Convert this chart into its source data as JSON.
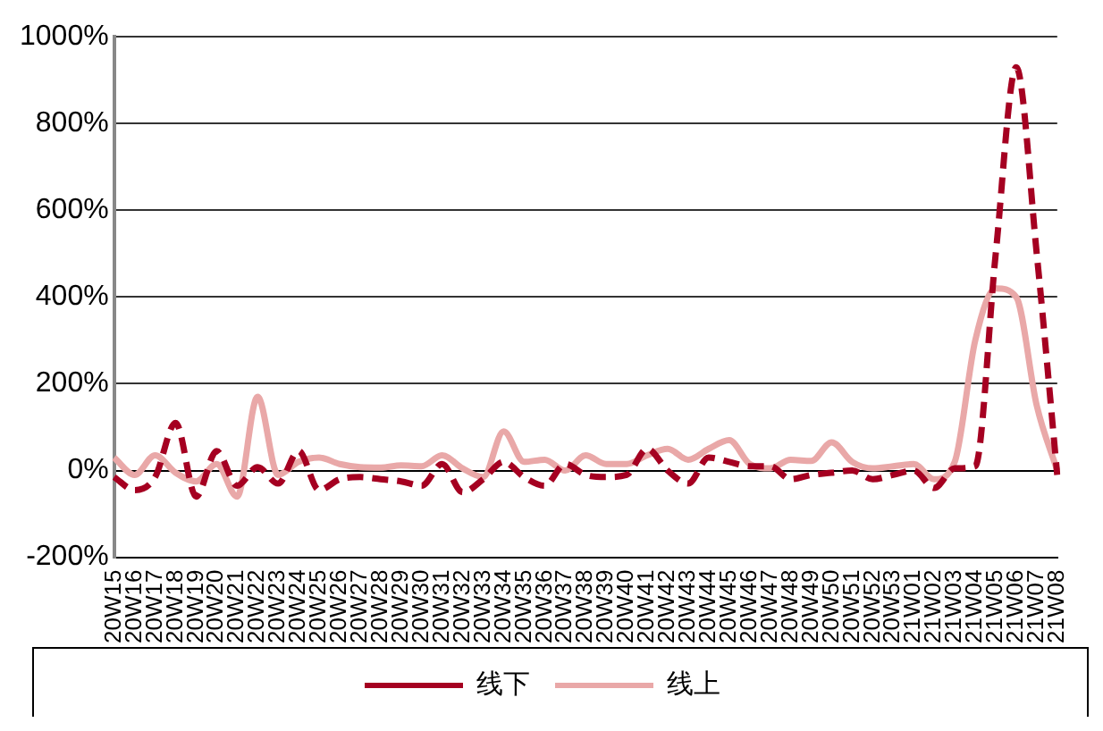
{
  "chart_data": {
    "type": "line",
    "categories": [
      "20W15",
      "20W16",
      "20W17",
      "20W18",
      "20W19",
      "20W20",
      "20W21",
      "20W22",
      "20W23",
      "20W24",
      "20W25",
      "20W26",
      "20W27",
      "20W28",
      "20W29",
      "20W30",
      "20W31",
      "20W32",
      "20W33",
      "20W34",
      "20W35",
      "20W36",
      "20W37",
      "20W38",
      "20W39",
      "20W40",
      "20W41",
      "20W42",
      "20W43",
      "20W44",
      "20W45",
      "20W46",
      "20W47",
      "20W48",
      "20W49",
      "20W50",
      "20W51",
      "20W52",
      "20W53",
      "21W01",
      "21W02",
      "21W03",
      "21W04",
      "21W05",
      "21W06",
      "21W07",
      "21W08"
    ],
    "series": [
      {
        "name": "线下",
        "color": "#a50021",
        "line_style": "dashed",
        "values": [
          -15,
          -45,
          -15,
          110,
          -60,
          45,
          -35,
          8,
          -30,
          45,
          -45,
          -20,
          -15,
          -20,
          -25,
          -35,
          15,
          -50,
          -20,
          20,
          -15,
          -35,
          15,
          -10,
          -15,
          -10,
          50,
          0,
          -30,
          30,
          20,
          10,
          10,
          -20,
          -10,
          -5,
          0,
          -20,
          -10,
          0,
          -40,
          5,
          10,
          500,
          930,
          500,
          -10
        ]
      },
      {
        "name": "线上",
        "color": "#e9a8a8",
        "line_style": "solid",
        "values": [
          30,
          -10,
          35,
          -5,
          -25,
          15,
          -60,
          170,
          -10,
          20,
          30,
          15,
          8,
          7,
          12,
          10,
          35,
          5,
          -15,
          90,
          20,
          25,
          0,
          35,
          15,
          15,
          35,
          50,
          25,
          50,
          70,
          15,
          5,
          25,
          22,
          65,
          20,
          5,
          10,
          15,
          -20,
          20,
          300,
          420,
          400,
          150,
          0
        ]
      }
    ],
    "ylim": [
      -200,
      1000
    ],
    "yticks": [
      {
        "value": -200,
        "label": "-200%"
      },
      {
        "value": 0,
        "label": "0%"
      },
      {
        "value": 200,
        "label": "200%"
      },
      {
        "value": 400,
        "label": "400%"
      },
      {
        "value": 600,
        "label": "600%"
      },
      {
        "value": 800,
        "label": "800%"
      },
      {
        "value": 1000,
        "label": "1000%"
      }
    ],
    "grid": "y",
    "legend": "bottom",
    "marker": "none"
  }
}
